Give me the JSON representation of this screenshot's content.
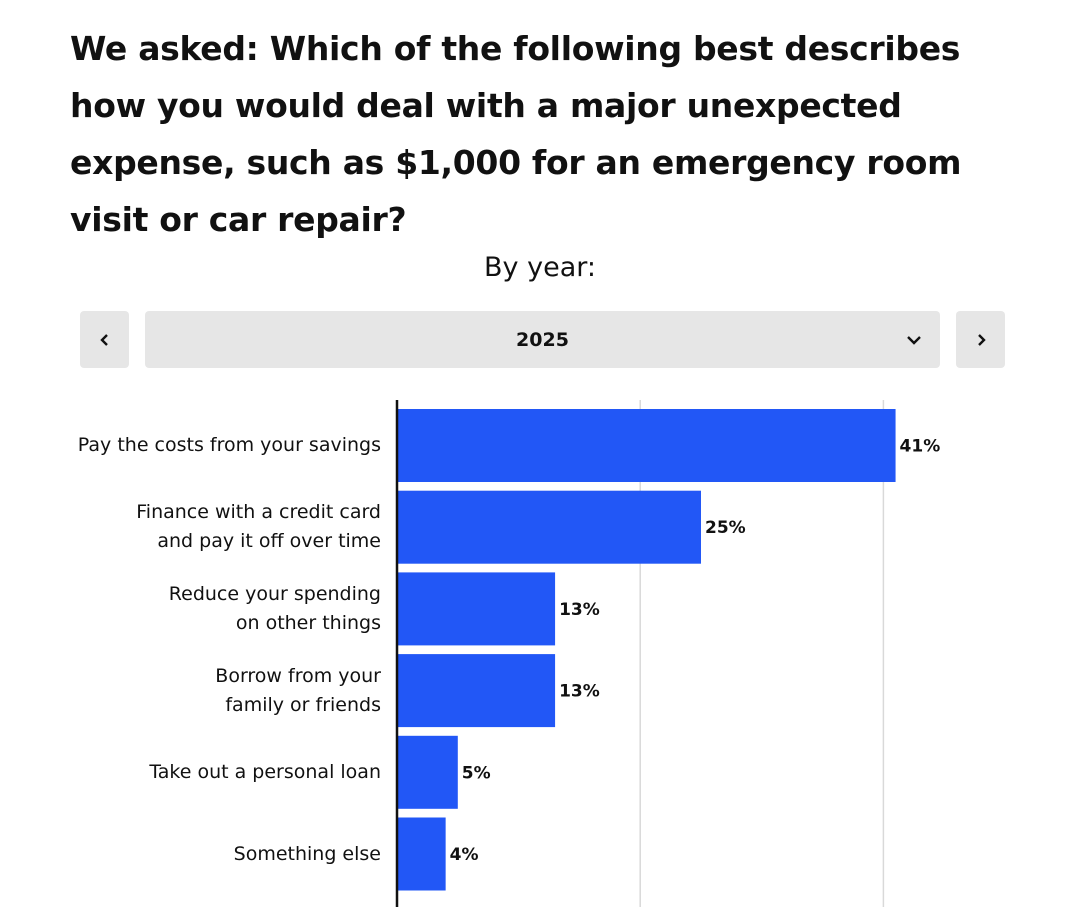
{
  "chart_data": {
    "type": "barh",
    "title": "We asked: Which of the following best describes how you would deal with a major unexpected expense, such as $1,000 for an emergency room visit or car repair?",
    "subtitle": "By year:",
    "selected_year": "2025",
    "categories": [
      "Pay the costs from your savings",
      "Finance with a credit card and pay it off over time",
      "Reduce your spending on other things",
      "Borrow from your family or friends",
      "Take out a personal loan",
      "Something else"
    ],
    "values": [
      41,
      25,
      13,
      13,
      5,
      4
    ],
    "value_labels": [
      "41%",
      "25%",
      "13%",
      "13%",
      "5%",
      "4%"
    ],
    "color": "#2257f6",
    "xlim": [
      0,
      50
    ],
    "xticks": [
      20,
      40
    ],
    "grid": true
  }
}
